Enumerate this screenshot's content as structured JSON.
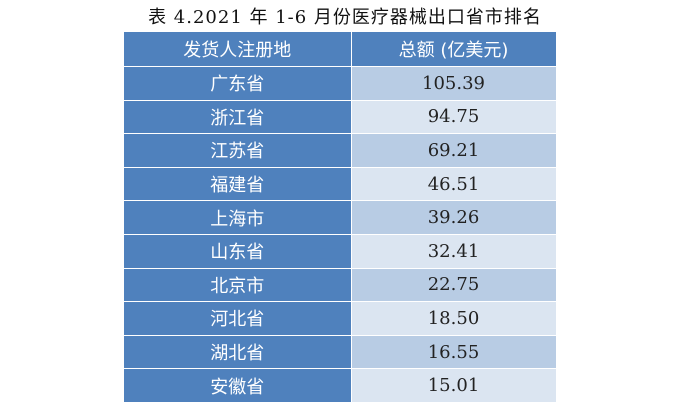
{
  "caption": "表 4.2021 年 1-6 月份医疗器械出口省市排名",
  "table": {
    "headers": [
      "发货人注册地",
      "总额 (亿美元)"
    ],
    "rows": [
      {
        "region": "广东省",
        "value": "105.39"
      },
      {
        "region": "浙江省",
        "value": "94.75"
      },
      {
        "region": "江苏省",
        "value": "69.21"
      },
      {
        "region": "福建省",
        "value": "46.51"
      },
      {
        "region": "上海市",
        "value": "39.26"
      },
      {
        "region": "山东省",
        "value": "32.41"
      },
      {
        "region": "北京市",
        "value": "22.75"
      },
      {
        "region": "河北省",
        "value": "18.50"
      },
      {
        "region": "湖北省",
        "value": "16.55"
      },
      {
        "region": "安徽省",
        "value": "15.01"
      }
    ]
  },
  "colors": {
    "header_bg": "#4f81bd",
    "row_band_dark": "#b8cce4",
    "row_band_light": "#dbe5f1"
  }
}
